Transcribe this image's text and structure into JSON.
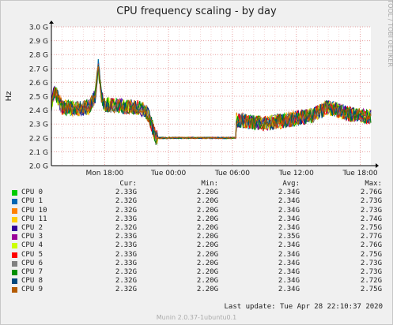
{
  "chart_data": {
    "type": "line",
    "title": "CPU frequency scaling - by day",
    "ylabel": "Hz",
    "side_label": "RRDTOOL / TOBI OETIKER",
    "ylim": [
      2.0,
      3.0
    ],
    "y_ticks": [
      "2.0 G",
      "2.1 G",
      "2.2 G",
      "2.3 G",
      "2.4 G",
      "2.5 G",
      "2.6 G",
      "2.7 G",
      "2.8 G",
      "2.9 G",
      "3.0 G"
    ],
    "x_ticks": [
      "Mon 18:00",
      "Tue 00:00",
      "Tue 06:00",
      "Tue 12:00",
      "Tue 18:00"
    ],
    "x_hours": [
      0,
      6,
      12,
      18,
      24
    ],
    "x_range_hours": [
      -5,
      25
    ],
    "x_unit": "hours after Mon 18:00",
    "profile": [
      [
        -5,
        2.44
      ],
      [
        -4.7,
        2.54
      ],
      [
        -4,
        2.42
      ],
      [
        -2.5,
        2.41
      ],
      [
        -1.5,
        2.42
      ],
      [
        -0.9,
        2.5
      ],
      [
        -0.6,
        2.72
      ],
      [
        -0.3,
        2.5
      ],
      [
        0,
        2.44
      ],
      [
        3,
        2.42
      ],
      [
        3.8,
        2.4
      ],
      [
        4.2,
        2.35
      ],
      [
        4.8,
        2.2
      ],
      [
        8,
        2.2
      ],
      [
        12,
        2.2
      ],
      [
        12.3,
        2.2
      ],
      [
        12.4,
        2.33
      ],
      [
        15,
        2.3
      ],
      [
        18,
        2.34
      ],
      [
        19.5,
        2.36
      ],
      [
        21,
        2.42
      ],
      [
        23,
        2.37
      ],
      [
        25,
        2.35
      ],
      [
        28,
        2.33
      ],
      [
        30,
        2.35
      ],
      [
        31.7,
        2.38
      ],
      [
        32,
        2.42
      ]
    ],
    "series": [
      {
        "name": "CPU 0",
        "color": "#00cc00"
      },
      {
        "name": "CPU 1",
        "color": "#0066b3"
      },
      {
        "name": "CPU 10",
        "color": "#ff8000"
      },
      {
        "name": "CPU 11",
        "color": "#ffcc00"
      },
      {
        "name": "CPU 2",
        "color": "#330099"
      },
      {
        "name": "CPU 3",
        "color": "#990099"
      },
      {
        "name": "CPU 4",
        "color": "#ccff00"
      },
      {
        "name": "CPU 5",
        "color": "#ff0000"
      },
      {
        "name": "CPU 6",
        "color": "#808080"
      },
      {
        "name": "CPU 7",
        "color": "#008f00"
      },
      {
        "name": "CPU 8",
        "color": "#00487d"
      },
      {
        "name": "CPU 9",
        "color": "#b35a00"
      }
    ]
  },
  "legend": {
    "headers": {
      "cur": "Cur:",
      "min": "Min:",
      "avg": "Avg:",
      "max": "Max:"
    },
    "rows": [
      {
        "name": "CPU 0",
        "color": "#00cc00",
        "cur": "2.33G",
        "min": "2.20G",
        "avg": "2.34G",
        "max": "2.76G"
      },
      {
        "name": "CPU 1",
        "color": "#0066b3",
        "cur": "2.32G",
        "min": "2.20G",
        "avg": "2.34G",
        "max": "2.73G"
      },
      {
        "name": "CPU 10",
        "color": "#ff8000",
        "cur": "2.32G",
        "min": "2.20G",
        "avg": "2.34G",
        "max": "2.73G"
      },
      {
        "name": "CPU 11",
        "color": "#ffcc00",
        "cur": "2.33G",
        "min": "2.20G",
        "avg": "2.34G",
        "max": "2.74G"
      },
      {
        "name": "CPU 2",
        "color": "#330099",
        "cur": "2.32G",
        "min": "2.20G",
        "avg": "2.34G",
        "max": "2.75G"
      },
      {
        "name": "CPU 3",
        "color": "#990099",
        "cur": "2.33G",
        "min": "2.20G",
        "avg": "2.35G",
        "max": "2.77G"
      },
      {
        "name": "CPU 4",
        "color": "#ccff00",
        "cur": "2.33G",
        "min": "2.20G",
        "avg": "2.34G",
        "max": "2.76G"
      },
      {
        "name": "CPU 5",
        "color": "#ff0000",
        "cur": "2.33G",
        "min": "2.20G",
        "avg": "2.34G",
        "max": "2.75G"
      },
      {
        "name": "CPU 6",
        "color": "#808080",
        "cur": "2.33G",
        "min": "2.20G",
        "avg": "2.34G",
        "max": "2.73G"
      },
      {
        "name": "CPU 7",
        "color": "#008f00",
        "cur": "2.32G",
        "min": "2.20G",
        "avg": "2.34G",
        "max": "2.73G"
      },
      {
        "name": "CPU 8",
        "color": "#00487d",
        "cur": "2.32G",
        "min": "2.20G",
        "avg": "2.34G",
        "max": "2.72G"
      },
      {
        "name": "CPU 9",
        "color": "#b35a00",
        "cur": "2.32G",
        "min": "2.20G",
        "avg": "2.34G",
        "max": "2.75G"
      }
    ]
  },
  "last_update": "Last update: Tue Apr 28 22:10:37 2020",
  "footer": "Munin 2.0.37-1ubuntu0.1"
}
